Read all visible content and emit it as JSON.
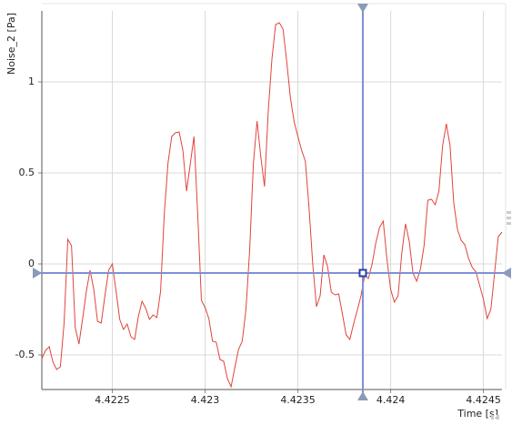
{
  "chart_data": {
    "type": "line",
    "x_label": "Time [s]",
    "y_label": "Noise_2 [Pa]",
    "xlim": [
      4.42212,
      4.4246
    ],
    "ylim": [
      -0.69,
      1.39
    ],
    "xticks": [
      4.4225,
      4.423,
      4.4235,
      4.424,
      4.4245
    ],
    "yticks": [
      -0.5,
      0,
      0.5,
      1
    ],
    "grid": true,
    "color": "#e0443c",
    "cursor": {
      "x": 4.42385,
      "y": -0.05,
      "color": "#7f8fd6"
    },
    "x": [
      4.42212,
      4.42214,
      4.42216,
      4.42218,
      4.4222,
      4.42222,
      4.42224,
      4.42226,
      4.42228,
      4.4223,
      4.42232,
      4.42234,
      4.42236,
      4.42238,
      4.4224,
      4.42242,
      4.42244,
      4.42246,
      4.42248,
      4.4225,
      4.42252,
      4.42254,
      4.42256,
      4.42258,
      4.4226,
      4.42262,
      4.42264,
      4.42266,
      4.42268,
      4.4227,
      4.42272,
      4.42274,
      4.42276,
      4.42278,
      4.4228,
      4.42282,
      4.42284,
      4.42286,
      4.42288,
      4.4229,
      4.42292,
      4.42294,
      4.42296,
      4.42298,
      4.423,
      4.42302,
      4.42304,
      4.42306,
      4.42308,
      4.4231,
      4.42312,
      4.42314,
      4.42316,
      4.42318,
      4.4232,
      4.42322,
      4.42324,
      4.42326,
      4.42328,
      4.4233,
      4.42332,
      4.42334,
      4.42336,
      4.42338,
      4.4234,
      4.42342,
      4.42344,
      4.42346,
      4.42348,
      4.4235,
      4.42352,
      4.42354,
      4.42356,
      4.42358,
      4.4236,
      4.42362,
      4.42364,
      4.42366,
      4.42368,
      4.4237,
      4.42372,
      4.42374,
      4.42376,
      4.42378,
      4.4238,
      4.42382,
      4.42384,
      4.42386,
      4.42388,
      4.4239,
      4.42392,
      4.42394,
      4.42396,
      4.42398,
      4.424,
      4.42402,
      4.42404,
      4.42406,
      4.42408,
      4.4241,
      4.42412,
      4.42414,
      4.42416,
      4.42418,
      4.4242,
      4.42422,
      4.42424,
      4.42426,
      4.42428,
      4.4243,
      4.42432,
      4.42434,
      4.42436,
      4.42438,
      4.4244,
      4.42442,
      4.42444,
      4.42446,
      4.42448,
      4.4245,
      4.42452,
      4.42454,
      4.42456,
      4.42458,
      4.4246
    ],
    "values": [
      -0.52,
      -0.475,
      -0.455,
      -0.54,
      -0.58,
      -0.565,
      -0.325,
      0.135,
      0.1,
      -0.35,
      -0.44,
      -0.3,
      -0.15,
      -0.035,
      -0.14,
      -0.315,
      -0.325,
      -0.175,
      -0.035,
      0,
      -0.15,
      -0.305,
      -0.36,
      -0.33,
      -0.4,
      -0.415,
      -0.29,
      -0.205,
      -0.245,
      -0.305,
      -0.28,
      -0.295,
      -0.15,
      0.275,
      0.555,
      0.7,
      0.72,
      0.725,
      0.625,
      0.4,
      0.55,
      0.7,
      0.275,
      -0.2,
      -0.24,
      -0.3,
      -0.425,
      -0.43,
      -0.525,
      -0.535,
      -0.63,
      -0.675,
      -0.57,
      -0.47,
      -0.425,
      -0.25,
      0.075,
      0.55,
      0.785,
      0.59,
      0.425,
      0.835,
      1.125,
      1.315,
      1.325,
      1.29,
      1.11,
      0.91,
      0.78,
      0.7,
      0.625,
      0.565,
      0.31,
      0,
      -0.235,
      -0.175,
      0.05,
      -0.015,
      -0.155,
      -0.17,
      -0.165,
      -0.275,
      -0.39,
      -0.415,
      -0.33,
      -0.255,
      -0.175,
      -0.065,
      -0.08,
      0,
      0.115,
      0.2,
      0.235,
      0.025,
      -0.14,
      -0.21,
      -0.175,
      0.06,
      0.22,
      0.125,
      -0.05,
      -0.095,
      -0.03,
      0.1,
      0.35,
      0.355,
      0.325,
      0.4,
      0.65,
      0.77,
      0.65,
      0.335,
      0.19,
      0.13,
      0.105,
      0.03,
      -0.02,
      -0.045,
      -0.12,
      -0.195,
      -0.3,
      -0.25,
      -0.05,
      0.15,
      0.175
    ]
  }
}
